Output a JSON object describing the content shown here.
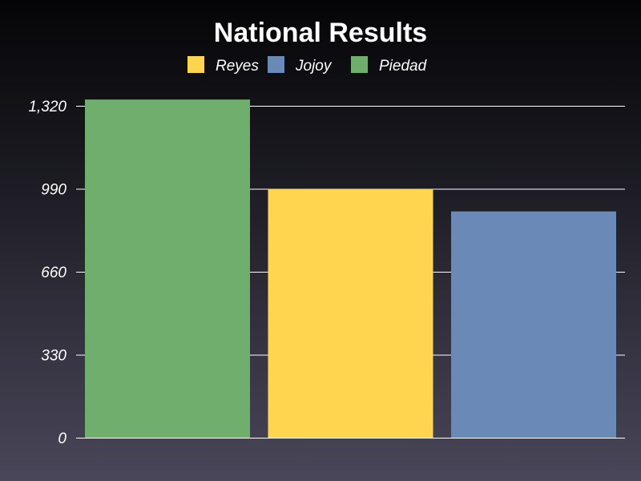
{
  "chart_data": {
    "type": "bar",
    "title": "National Results",
    "xlabel": "",
    "ylabel": "",
    "categories": [
      "Piedad",
      "Reyes",
      "Jojoy"
    ],
    "values": [
      1345,
      990,
      900
    ],
    "colors": [
      "#6fae6c",
      "#ffd54f",
      "#6a89b6"
    ],
    "legend": [
      {
        "name": "Reyes",
        "color": "#ffd54f"
      },
      {
        "name": "Jojoy",
        "color": "#6a89b6"
      },
      {
        "name": "Piedad",
        "color": "#6fae6c"
      }
    ],
    "legend_position": "top",
    "ylim": [
      0,
      1320
    ],
    "yticks": [
      0,
      330,
      660,
      990,
      1320
    ],
    "ytick_labels": [
      "0",
      "330",
      "660",
      "990",
      "1,320"
    ],
    "grid": true
  }
}
